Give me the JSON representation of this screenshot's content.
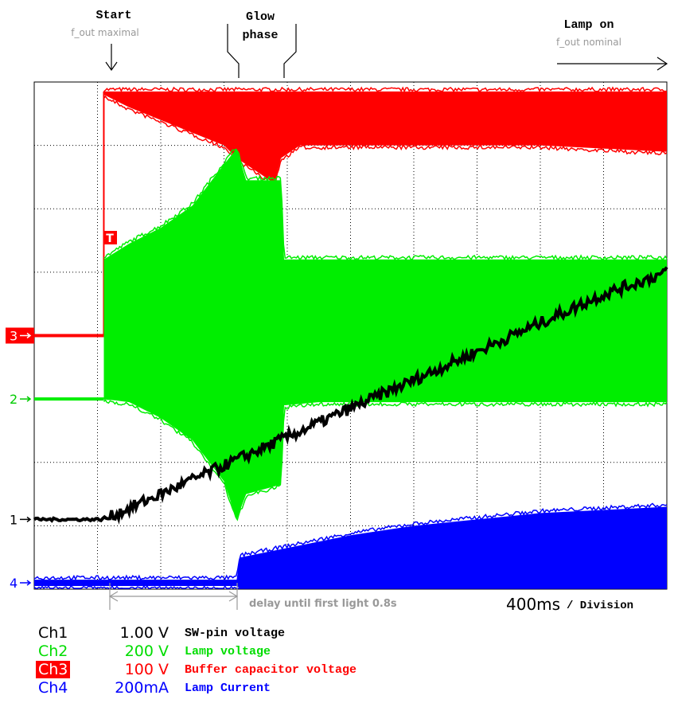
{
  "annotations": {
    "start_title": "Start",
    "start_sub": "f_out maximal",
    "glow_line1": "Glow",
    "glow_line2": "phase",
    "lamp_on_title": "Lamp on",
    "lamp_on_sub": "f_out  nominal",
    "delay_label": "delay until first light 0.8s",
    "timebase_value": "400ms",
    "timebase_unit": "/ Division",
    "trigger_marker": "T"
  },
  "markers": [
    {
      "label": "3",
      "color": "#ff0000"
    },
    {
      "label": "2",
      "color": "#00cc00"
    },
    {
      "label": "1",
      "color": "#000000"
    },
    {
      "label": "4",
      "color": "#0000ff"
    }
  ],
  "legend": [
    {
      "ch": "Ch1",
      "scale": "1.00 V",
      "desc": "SW-pin voltage",
      "color": "#000000"
    },
    {
      "ch": "Ch2",
      "scale": "200 V",
      "desc": "Lamp voltage",
      "color": "#00dd00"
    },
    {
      "ch": "Ch3",
      "scale": "100 V",
      "desc": "Buffer capacitor voltage",
      "color": "#ff0000"
    },
    {
      "ch": "Ch4",
      "scale": "200mA",
      "desc": "Lamp Current",
      "color": "#0000ff"
    }
  ],
  "colors": {
    "ch1": "#000000",
    "ch2": "#00ee00",
    "ch3": "#ff0000",
    "ch4": "#0000ff",
    "grid": "#000000",
    "annotation_gray": "#999999"
  },
  "chart_data": {
    "type": "line",
    "title": "",
    "xlabel": "",
    "ylabel": "",
    "x_unit": "division (400ms)",
    "xlim": [
      0,
      10
    ],
    "ylim": [
      -4,
      4
    ],
    "grid": true,
    "start_div": 1.1,
    "glow_start_div": 3.2,
    "glow_end_div": 3.9,
    "series": [
      {
        "name": "Ch1",
        "kind": "trace",
        "x": [
          0,
          1.1,
          2.0,
          3.0,
          4.0,
          5.0,
          6.0,
          7.0,
          8.0,
          9.0,
          10.0
        ],
        "y": [
          -2.9,
          -2.9,
          -2.5,
          -2.05,
          -1.6,
          -1.15,
          -0.7,
          -0.25,
          0.2,
          0.65,
          1.0
        ]
      },
      {
        "name": "Ch2",
        "kind": "envelope",
        "baseline": -1.0,
        "x": [
          1.1,
          1.5,
          2.0,
          2.5,
          3.0,
          3.2,
          3.35,
          3.9,
          3.95,
          4.5,
          5.0,
          6.0,
          7.0,
          8.0,
          9.0,
          10.0
        ],
        "upper": [
          1.2,
          1.45,
          1.7,
          2.05,
          2.7,
          2.95,
          2.45,
          2.45,
          1.2,
          1.2,
          1.2,
          1.2,
          1.2,
          1.2,
          1.2,
          1.2
        ],
        "lower": [
          -1.0,
          -1.05,
          -1.3,
          -1.65,
          -2.3,
          -2.9,
          -2.5,
          -2.35,
          -1.1,
          -1.05,
          -1.05,
          -1.05,
          -1.05,
          -1.05,
          -1.05,
          -1.05
        ]
      },
      {
        "name": "Ch3",
        "kind": "envelope",
        "baseline": 0.0,
        "x": [
          1.1,
          1.5,
          2.0,
          2.5,
          3.0,
          3.2,
          3.5,
          3.8,
          3.9,
          4.2,
          5.0,
          6.0,
          7.0,
          8.0,
          9.0,
          10.0
        ],
        "upper": [
          3.85,
          3.85,
          3.85,
          3.85,
          3.85,
          3.85,
          3.85,
          3.85,
          3.85,
          3.85,
          3.85,
          3.85,
          3.85,
          3.85,
          3.85,
          3.85
        ],
        "lower": [
          3.8,
          3.6,
          3.4,
          3.2,
          3.0,
          2.8,
          2.6,
          2.4,
          2.8,
          3.0,
          3.0,
          3.0,
          3.0,
          3.0,
          2.95,
          2.9
        ]
      },
      {
        "name": "Ch4",
        "kind": "envelope",
        "baseline": -3.9,
        "x": [
          0,
          3.2,
          3.25,
          3.5,
          4.0,
          5.0,
          6.0,
          7.0,
          8.0,
          9.0,
          10.0
        ],
        "upper": [
          -3.85,
          -3.85,
          -3.5,
          -3.45,
          -3.35,
          -3.15,
          -3.0,
          -2.9,
          -2.8,
          -2.75,
          -2.7
        ],
        "lower": [
          -3.95,
          -3.95,
          -4.3,
          -4.45,
          -4.6,
          -4.75,
          -4.95,
          -5.15,
          -5.35,
          -5.5,
          -5.65
        ]
      }
    ]
  }
}
